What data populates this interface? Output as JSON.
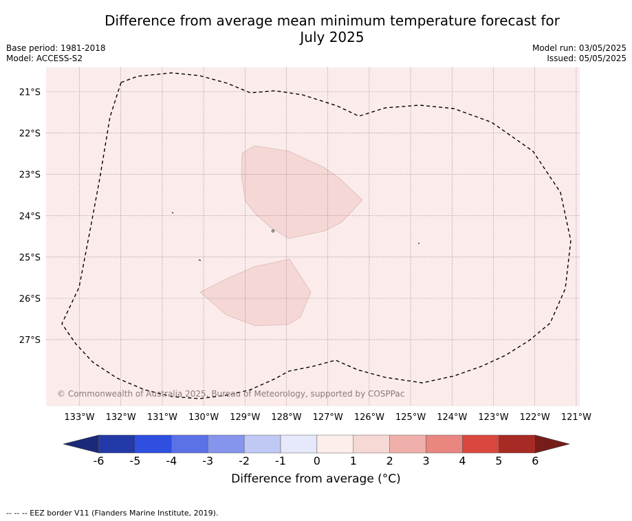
{
  "title_line1": "Difference from average mean minimum temperature forecast for",
  "title_line2": "July 2025",
  "base_period": "Base period: 1981-2018",
  "model": "Model: ACCESS-S2",
  "model_run": "Model run: 03/05/2025",
  "issued": "Issued: 05/05/2025",
  "copyright": "© Commonwealth of Australia 2025, Bureau of Meteorology, supported by COSPPac",
  "footer": "-- -- -- EEZ border V11 (Flanders Marine Institute, 2019).",
  "colorbar": {
    "label": "Difference from average (°C)",
    "ticks": [
      "-6",
      "-5",
      "-4",
      "-3",
      "-2",
      "-1",
      "0",
      "1",
      "2",
      "3",
      "4",
      "5",
      "6"
    ],
    "colors": [
      "#2339a8",
      "#2e4fe0",
      "#5b72e6",
      "#8595ee",
      "#c0c8f5",
      "#e6e9fb",
      "#fdeeec",
      "#f6d8d5",
      "#efafaa",
      "#e8867f",
      "#d9473e",
      "#a82a25"
    ],
    "low_extend_color": "#1b2a78",
    "high_extend_color": "#761d1a"
  },
  "map": {
    "background_color": "#fbeceb",
    "anomaly_color": "#f5d8d6",
    "lon_labels": [
      "133°W",
      "132°W",
      "131°W",
      "130°W",
      "129°W",
      "128°W",
      "127°W",
      "126°W",
      "125°W",
      "124°W",
      "123°W",
      "122°W",
      "121°W"
    ],
    "lat_labels": [
      "21°S",
      "22°S",
      "23°S",
      "24°S",
      "25°S",
      "26°S",
      "27°S"
    ]
  }
}
